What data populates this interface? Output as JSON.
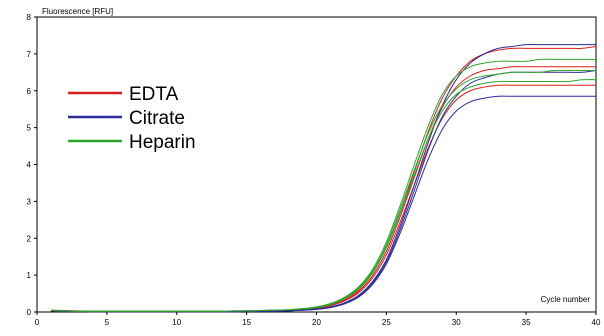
{
  "chart_data": {
    "type": "line",
    "title": "",
    "ylabel": "Fluorescence [RFU]",
    "xlabel": "Cycle number",
    "xlim": [
      0,
      40
    ],
    "ylim": [
      0,
      8
    ],
    "xticks": [
      0,
      5,
      10,
      15,
      20,
      25,
      30,
      35,
      40
    ],
    "yticks": [
      0,
      1,
      2,
      3,
      4,
      5,
      6,
      7,
      8
    ],
    "grid": false,
    "legend_placement": "upper-left",
    "legend": [
      {
        "name": "EDTA",
        "color": "#d81e1e"
      },
      {
        "name": "Citrate",
        "color": "#2b2b9a"
      },
      {
        "name": "Heparin",
        "color": "#2ea52e"
      }
    ],
    "x": [
      1,
      2,
      3,
      4,
      5,
      6,
      7,
      8,
      9,
      10,
      11,
      12,
      13,
      14,
      15,
      16,
      17,
      18,
      19,
      20,
      21,
      22,
      23,
      24,
      25,
      26,
      27,
      28,
      29,
      30,
      31,
      32,
      33,
      34,
      35,
      36,
      37,
      38,
      39,
      40
    ],
    "series": [
      {
        "group": "EDTA",
        "values": [
          0.04,
          0.03,
          0.02,
          0.02,
          0.02,
          0.02,
          0.02,
          0.02,
          0.02,
          0.02,
          0.02,
          0.02,
          0.02,
          0.02,
          0.03,
          0.03,
          0.04,
          0.05,
          0.08,
          0.12,
          0.2,
          0.35,
          0.6,
          1.05,
          1.75,
          2.7,
          3.8,
          4.9,
          5.8,
          6.4,
          6.8,
          7.0,
          7.1,
          7.15,
          7.15,
          7.15,
          7.15,
          7.15,
          7.15,
          7.2
        ]
      },
      {
        "group": "EDTA",
        "values": [
          0.04,
          0.03,
          0.02,
          0.02,
          0.02,
          0.02,
          0.02,
          0.02,
          0.02,
          0.02,
          0.02,
          0.02,
          0.02,
          0.02,
          0.03,
          0.03,
          0.04,
          0.05,
          0.07,
          0.11,
          0.18,
          0.32,
          0.56,
          0.98,
          1.65,
          2.6,
          3.65,
          4.7,
          5.55,
          6.1,
          6.4,
          6.55,
          6.6,
          6.65,
          6.65,
          6.65,
          6.65,
          6.65,
          6.65,
          6.65
        ]
      },
      {
        "group": "EDTA",
        "values": [
          0.05,
          0.04,
          0.03,
          0.02,
          0.02,
          0.02,
          0.02,
          0.02,
          0.02,
          0.02,
          0.02,
          0.02,
          0.02,
          0.02,
          0.03,
          0.03,
          0.04,
          0.05,
          0.07,
          0.1,
          0.17,
          0.3,
          0.52,
          0.92,
          1.55,
          2.45,
          3.45,
          4.45,
          5.25,
          5.75,
          6.0,
          6.1,
          6.15,
          6.15,
          6.15,
          6.15,
          6.15,
          6.15,
          6.15,
          6.15
        ]
      },
      {
        "group": "Citrate",
        "values": [
          0.03,
          0.02,
          0.02,
          0.01,
          0.01,
          0.01,
          0.01,
          0.01,
          0.01,
          0.01,
          0.01,
          0.01,
          0.01,
          0.01,
          0.02,
          0.02,
          0.02,
          0.03,
          0.05,
          0.08,
          0.14,
          0.25,
          0.45,
          0.82,
          1.42,
          2.35,
          3.45,
          4.6,
          5.6,
          6.3,
          6.75,
          7.0,
          7.15,
          7.2,
          7.25,
          7.25,
          7.25,
          7.25,
          7.25,
          7.25
        ]
      },
      {
        "group": "Citrate",
        "values": [
          0.03,
          0.02,
          0.02,
          0.01,
          0.01,
          0.01,
          0.01,
          0.01,
          0.01,
          0.01,
          0.01,
          0.01,
          0.01,
          0.01,
          0.02,
          0.02,
          0.02,
          0.03,
          0.05,
          0.07,
          0.12,
          0.22,
          0.4,
          0.74,
          1.3,
          2.15,
          3.15,
          4.15,
          4.95,
          5.45,
          5.7,
          5.8,
          5.85,
          5.85,
          5.85,
          5.85,
          5.85,
          5.85,
          5.85,
          5.85
        ]
      },
      {
        "group": "Citrate",
        "values": [
          0.03,
          0.02,
          0.02,
          0.01,
          0.01,
          0.01,
          0.01,
          0.01,
          0.01,
          0.01,
          0.01,
          0.01,
          0.01,
          0.01,
          0.02,
          0.02,
          0.02,
          0.03,
          0.05,
          0.07,
          0.12,
          0.23,
          0.42,
          0.78,
          1.36,
          2.25,
          3.3,
          4.4,
          5.3,
          5.85,
          6.2,
          6.35,
          6.45,
          6.5,
          6.5,
          6.5,
          6.5,
          6.5,
          6.5,
          6.55
        ]
      },
      {
        "group": "Heparin",
        "values": [
          0.04,
          0.03,
          0.02,
          0.02,
          0.02,
          0.02,
          0.02,
          0.02,
          0.02,
          0.02,
          0.02,
          0.02,
          0.02,
          0.03,
          0.03,
          0.04,
          0.05,
          0.06,
          0.09,
          0.14,
          0.23,
          0.4,
          0.68,
          1.15,
          1.9,
          2.9,
          4.0,
          5.05,
          5.9,
          6.4,
          6.65,
          6.75,
          6.8,
          6.8,
          6.8,
          6.85,
          6.85,
          6.85,
          6.85,
          6.85
        ]
      },
      {
        "group": "Heparin",
        "values": [
          0.04,
          0.03,
          0.02,
          0.02,
          0.02,
          0.02,
          0.02,
          0.02,
          0.02,
          0.02,
          0.02,
          0.02,
          0.02,
          0.03,
          0.03,
          0.04,
          0.05,
          0.06,
          0.09,
          0.13,
          0.22,
          0.38,
          0.65,
          1.1,
          1.82,
          2.8,
          3.85,
          4.85,
          5.6,
          6.05,
          6.3,
          6.4,
          6.45,
          6.5,
          6.5,
          6.5,
          6.55,
          6.55,
          6.55,
          6.55
        ]
      },
      {
        "group": "Heparin",
        "values": [
          0.04,
          0.03,
          0.02,
          0.02,
          0.02,
          0.02,
          0.02,
          0.02,
          0.02,
          0.02,
          0.02,
          0.02,
          0.02,
          0.03,
          0.03,
          0.04,
          0.05,
          0.06,
          0.08,
          0.12,
          0.2,
          0.36,
          0.62,
          1.05,
          1.75,
          2.7,
          3.7,
          4.7,
          5.45,
          5.9,
          6.1,
          6.2,
          6.25,
          6.25,
          6.25,
          6.25,
          6.25,
          6.25,
          6.3,
          6.3
        ]
      }
    ]
  }
}
